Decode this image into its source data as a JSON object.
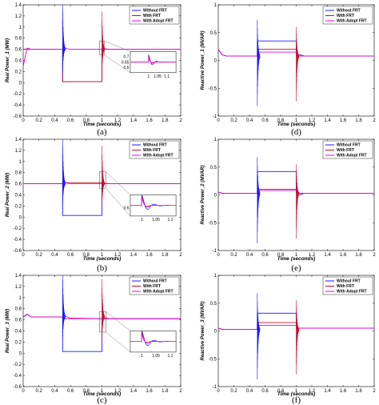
{
  "figure": {
    "xlabel": "Time (seconds)",
    "legend_entries": [
      "Without FRT",
      "With FRT",
      "With Adopt FRT"
    ],
    "colors": {
      "Without FRT": "#1a1aff",
      "With FRT": "#c8102e",
      "With Adopt FRT": "#e600e6"
    }
  },
  "chart_data": [
    {
      "type": "line",
      "panel_label": "(a)",
      "ylabel": "Real Power_1 (MW)",
      "xlim": [
        0,
        2
      ],
      "ylim": [
        -0.6,
        1.4
      ],
      "xticks": [
        0,
        0.2,
        0.4,
        0.6,
        0.8,
        1,
        1.2,
        1.4,
        1.6,
        1.8,
        2
      ],
      "yticks": [
        -0.6,
        -0.4,
        -0.2,
        0,
        0.2,
        0.4,
        0.6,
        0.8,
        1,
        1.2,
        1.4
      ],
      "legend": "top-right",
      "series": [
        {
          "name": "Without FRT",
          "x": [
            0,
            0.05,
            0.1,
            0.5,
            0.5,
            1.0,
            1.0,
            1.05,
            1.1,
            2
          ],
          "y": [
            0.6,
            0.6,
            0.6,
            0.6,
            0.02,
            0.02,
            0.62,
            0.6,
            0.6,
            0.6
          ]
        },
        {
          "name": "With FRT",
          "x": [
            0,
            0.05,
            0.1,
            0.5,
            0.5,
            1.0,
            1.0,
            1.05,
            1.1,
            2
          ],
          "y": [
            0.6,
            0.6,
            0.6,
            0.6,
            0.02,
            0.02,
            0.62,
            0.6,
            0.6,
            0.6
          ]
        },
        {
          "name": "With Adopt FRT",
          "x": [
            0,
            0.05,
            0.1,
            0.5,
            0.52,
            0.6,
            1.0,
            1.03,
            1.1,
            2
          ],
          "y": [
            0.3,
            0.62,
            0.6,
            0.6,
            0.62,
            0.6,
            0.6,
            0.61,
            0.6,
            0.6
          ]
        }
      ],
      "inset": {
        "xlim": [
          0.9,
          1.15
        ],
        "ylim": [
          0.55,
          0.75
        ],
        "xticks": [
          1,
          1.05,
          1.1
        ],
        "yticks": [
          0.6,
          0.65,
          0.7
        ],
        "zoom_region": [
          0.97,
          1.03,
          0.5,
          0.75
        ]
      }
    },
    {
      "type": "line",
      "panel_label": "(b)",
      "ylabel": "Real Power_2 (MW)",
      "xlim": [
        0,
        2
      ],
      "ylim": [
        -0.6,
        1.4
      ],
      "xticks": [
        0,
        0.2,
        0.4,
        0.6,
        0.8,
        1,
        1.2,
        1.4,
        1.6,
        1.8,
        2
      ],
      "yticks": [
        -0.6,
        -0.4,
        -0.2,
        0,
        0.2,
        0.4,
        0.6,
        0.8,
        1,
        1.2,
        1.4
      ],
      "legend": "top-right",
      "series": [
        {
          "name": "Without FRT",
          "x": [
            0,
            0.05,
            0.1,
            0.5,
            0.5,
            1.0,
            1.0,
            1.05,
            1.1,
            2
          ],
          "y": [
            0.6,
            0.6,
            0.6,
            0.6,
            0.03,
            0.03,
            0.62,
            0.6,
            0.6,
            0.6
          ]
        },
        {
          "name": "With FRT",
          "x": [
            0,
            0.05,
            0.1,
            0.5,
            0.5,
            1.0,
            1.0,
            1.05,
            1.1,
            2
          ],
          "y": [
            0.6,
            0.6,
            0.6,
            0.6,
            0.62,
            0.62,
            0.62,
            0.6,
            0.6,
            0.6
          ]
        },
        {
          "name": "With Adopt FRT",
          "x": [
            0,
            0.05,
            0.1,
            0.5,
            0.52,
            0.6,
            1.0,
            1.03,
            1.1,
            2
          ],
          "y": [
            0.6,
            0.6,
            0.6,
            0.6,
            0.62,
            0.6,
            0.6,
            0.61,
            0.6,
            0.6
          ]
        }
      ],
      "inset": {
        "xlim": [
          0.96,
          1.12
        ],
        "ylim": [
          0.55,
          0.68
        ],
        "xticks": [
          1,
          1.05,
          1.1
        ],
        "yticks": [
          0.6
        ],
        "zoom_region": [
          0.97,
          1.05,
          0.52,
          0.82
        ]
      }
    },
    {
      "type": "line",
      "panel_label": "(c)",
      "ylabel": "Real Power_3 (MW)",
      "xlim": [
        0,
        2
      ],
      "ylim": [
        -0.6,
        1.4
      ],
      "xticks": [
        0,
        0.2,
        0.4,
        0.6,
        0.8,
        1,
        1.2,
        1.4,
        1.6,
        1.8,
        2
      ],
      "yticks": [
        -0.6,
        -0.4,
        -0.2,
        0,
        0.2,
        0.4,
        0.6,
        0.8,
        1,
        1.2,
        1.4
      ],
      "legend": "top-right",
      "series": [
        {
          "name": "Without FRT",
          "x": [
            0,
            0.05,
            0.1,
            0.5,
            0.5,
            1.0,
            1.0,
            1.05,
            1.1,
            2
          ],
          "y": [
            0.65,
            0.7,
            0.65,
            0.65,
            0.03,
            0.03,
            0.62,
            0.62,
            0.62,
            0.62
          ]
        },
        {
          "name": "With FRT",
          "x": [
            0,
            0.05,
            0.1,
            0.5,
            0.5,
            1.0,
            1.0,
            1.05,
            1.1,
            2
          ],
          "y": [
            0.65,
            0.7,
            0.65,
            0.65,
            0.62,
            0.62,
            0.62,
            0.62,
            0.62,
            0.62
          ]
        },
        {
          "name": "With Adopt FRT",
          "x": [
            0,
            0.05,
            0.1,
            0.5,
            0.52,
            0.6,
            1.0,
            1.03,
            1.1,
            2
          ],
          "y": [
            0.65,
            0.7,
            0.65,
            0.65,
            0.67,
            0.63,
            0.62,
            0.64,
            0.62,
            0.62
          ]
        }
      ],
      "inset": {
        "xlim": [
          0.96,
          1.12
        ],
        "ylim": [
          0.55,
          0.68
        ],
        "xticks": [
          1,
          1.05,
          1.1
        ],
        "yticks": [],
        "zoom_region": [
          0.97,
          1.05,
          0.38,
          0.75
        ]
      }
    },
    {
      "type": "line",
      "panel_label": "(d)",
      "ylabel": "Reactive Power_1 (MVAR)",
      "xlim": [
        0,
        2
      ],
      "ylim": [
        -1,
        1
      ],
      "xticks": [
        0,
        0.2,
        0.4,
        0.6,
        0.8,
        1,
        1.2,
        1.4,
        1.6,
        1.8,
        2
      ],
      "yticks": [
        -1,
        -0.5,
        0,
        0.5,
        1
      ],
      "legend": "top-right",
      "series": [
        {
          "name": "Without FRT",
          "x": [
            0,
            0.05,
            0.1,
            0.5,
            0.5,
            1.0,
            1.0,
            1.05,
            1.1,
            2
          ],
          "y": [
            0.2,
            0.1,
            0.08,
            0.08,
            0.35,
            0.35,
            0.08,
            0.1,
            0.08,
            0.08
          ]
        },
        {
          "name": "With FRT",
          "x": [
            0,
            0.05,
            0.1,
            0.5,
            0.5,
            1.0,
            1.0,
            1.05,
            1.1,
            2
          ],
          "y": [
            0.2,
            0.1,
            0.08,
            0.08,
            0.2,
            0.2,
            0.08,
            0.08,
            0.08,
            0.08
          ]
        },
        {
          "name": "With Adopt FRT",
          "x": [
            0,
            0.05,
            0.1,
            0.5,
            0.5,
            1.0,
            1.0,
            1.05,
            1.1,
            2
          ],
          "y": [
            0.2,
            0.1,
            0.08,
            0.08,
            0.15,
            0.15,
            0.08,
            0.08,
            0.08,
            0.08
          ]
        }
      ]
    },
    {
      "type": "line",
      "panel_label": "(e)",
      "ylabel": "Reactive Power_2 (MVAR)",
      "xlim": [
        0,
        2
      ],
      "ylim": [
        -1,
        1
      ],
      "xticks": [
        0,
        0.2,
        0.4,
        0.6,
        0.8,
        1,
        1.2,
        1.4,
        1.6,
        1.8,
        2
      ],
      "yticks": [
        -1,
        -0.5,
        0,
        0.5,
        1
      ],
      "legend": "top-right",
      "series": [
        {
          "name": "Without FRT",
          "x": [
            0,
            0.05,
            0.1,
            0.5,
            0.5,
            1.0,
            1.0,
            1.05,
            1.1,
            2
          ],
          "y": [
            0.05,
            0.03,
            0.03,
            0.03,
            0.42,
            0.42,
            0.03,
            0.0,
            0.03,
            0.03
          ]
        },
        {
          "name": "With FRT",
          "x": [
            0,
            0.05,
            0.1,
            0.5,
            0.5,
            1.0,
            1.0,
            1.05,
            1.1,
            2
          ],
          "y": [
            0.05,
            0.03,
            0.03,
            0.03,
            0.1,
            0.1,
            0.03,
            0.03,
            0.03,
            0.03
          ]
        },
        {
          "name": "With Adopt FRT",
          "x": [
            0,
            0.05,
            0.1,
            0.5,
            0.5,
            1.0,
            1.0,
            1.05,
            1.1,
            2
          ],
          "y": [
            0.05,
            0.03,
            0.03,
            0.03,
            0.08,
            0.08,
            0.03,
            0.03,
            0.03,
            0.03
          ]
        }
      ]
    },
    {
      "type": "line",
      "panel_label": "(f)",
      "ylabel": "Reactive Power_3 (MVAR)",
      "xlim": [
        0,
        2
      ],
      "ylim": [
        -1,
        1
      ],
      "xticks": [
        0,
        0.2,
        0.4,
        0.6,
        0.8,
        1,
        1.2,
        1.4,
        1.6,
        1.8,
        2
      ],
      "yticks": [
        -1,
        -0.5,
        0,
        0.5,
        1
      ],
      "legend": "top-right",
      "series": [
        {
          "name": "Without FRT",
          "x": [
            0,
            0.05,
            0.1,
            0.5,
            0.5,
            1.0,
            1.0,
            1.05,
            1.1,
            2
          ],
          "y": [
            0.05,
            0.03,
            0.03,
            0.03,
            0.32,
            0.32,
            0.05,
            0.05,
            0.05,
            0.05
          ]
        },
        {
          "name": "With FRT",
          "x": [
            0,
            0.05,
            0.1,
            0.5,
            0.5,
            1.0,
            1.0,
            1.05,
            1.1,
            2
          ],
          "y": [
            0.05,
            0.03,
            0.03,
            0.03,
            0.15,
            0.15,
            0.05,
            0.05,
            0.05,
            0.05
          ]
        },
        {
          "name": "With Adopt FRT",
          "x": [
            0,
            0.05,
            0.1,
            0.5,
            0.5,
            1.0,
            1.0,
            1.05,
            1.1,
            2
          ],
          "y": [
            0.05,
            0.03,
            0.03,
            0.03,
            0.1,
            0.1,
            0.05,
            0.05,
            0.05,
            0.05
          ]
        }
      ]
    }
  ]
}
